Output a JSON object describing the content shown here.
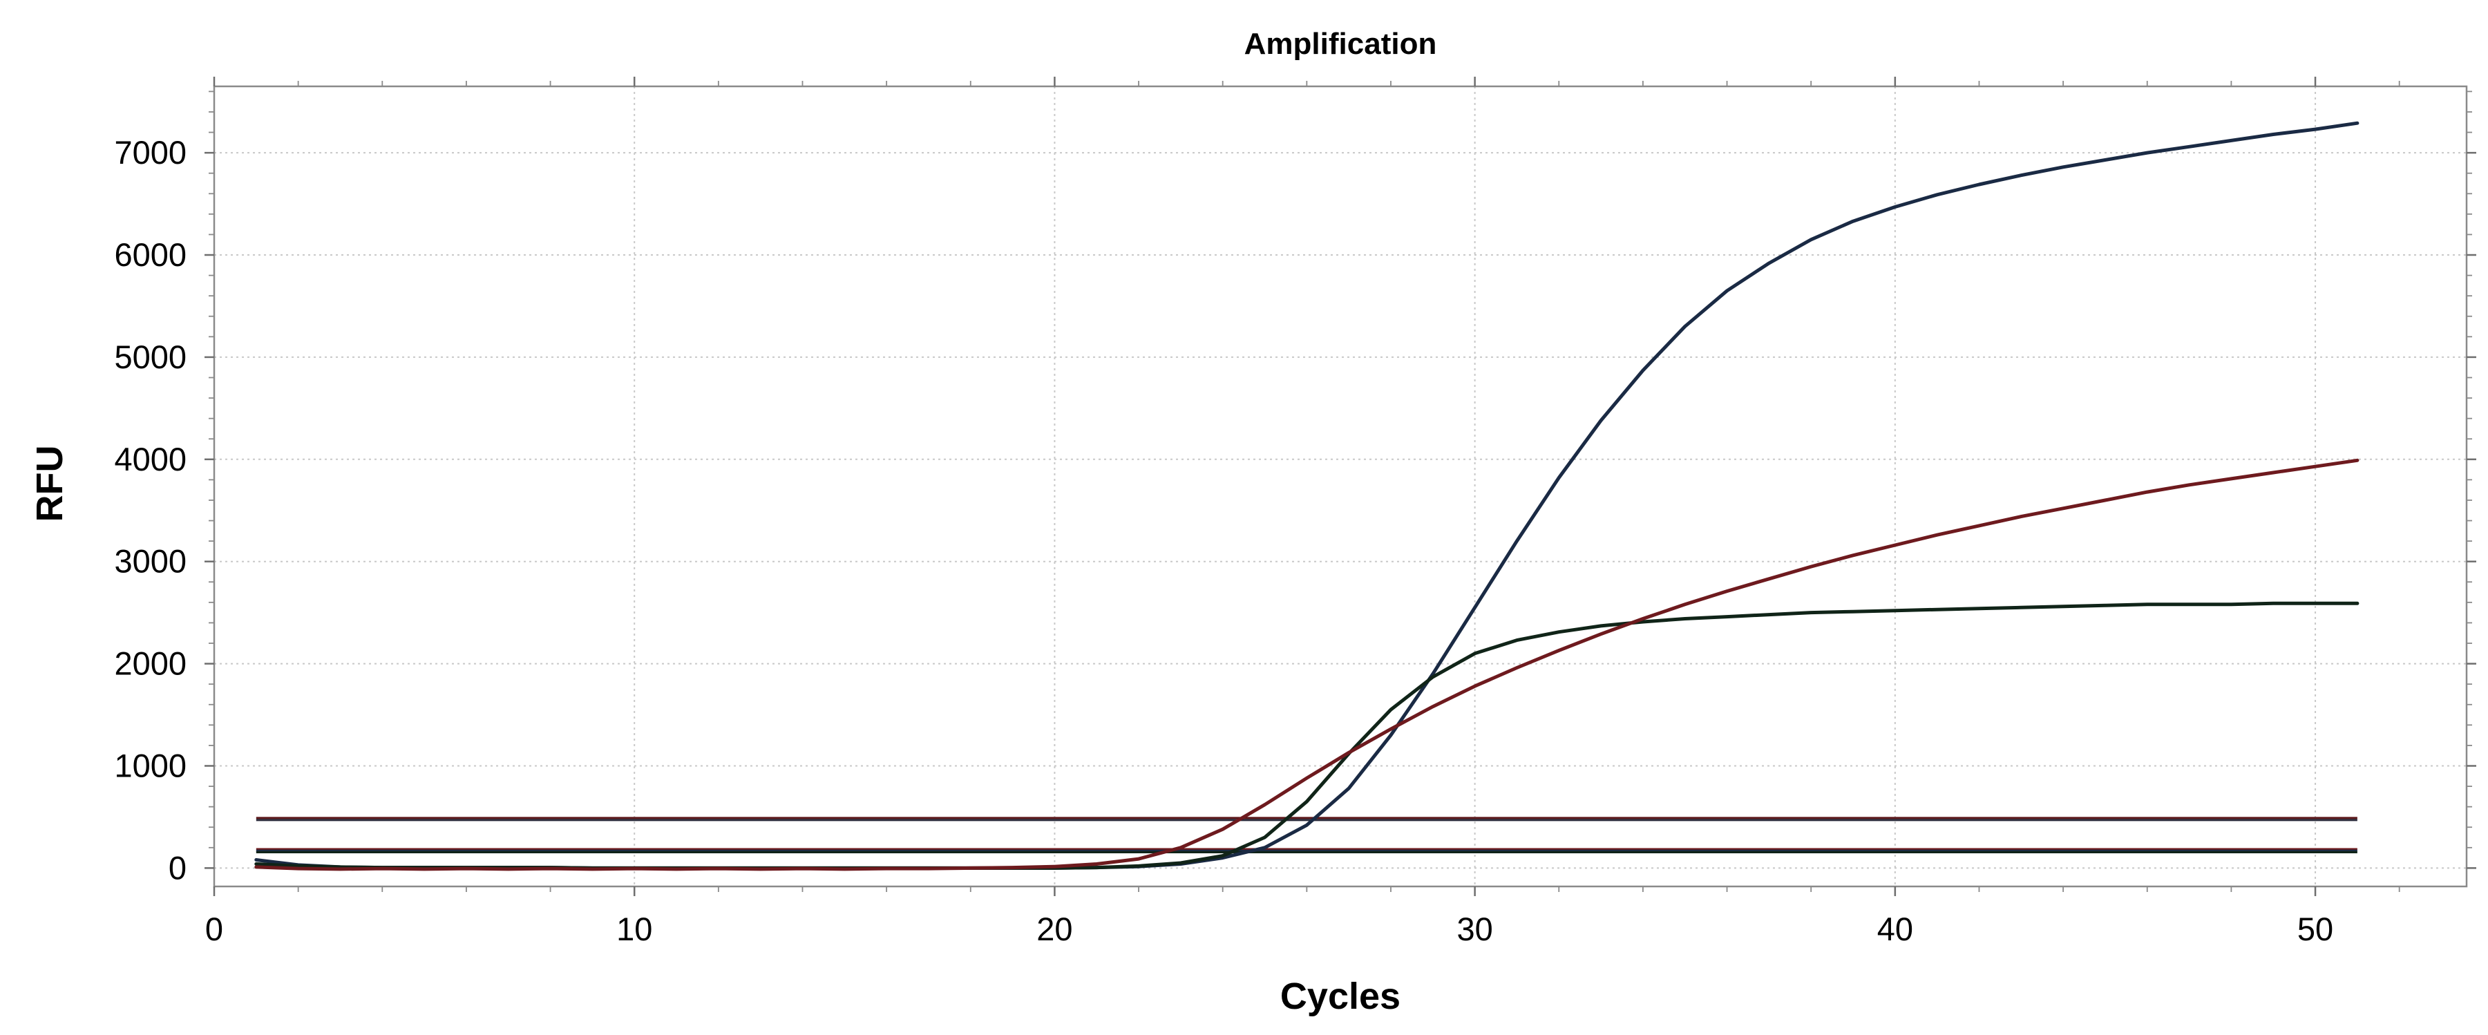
{
  "chart_data": {
    "type": "line",
    "title": "Amplification",
    "xlabel": "Cycles",
    "ylabel": "RFU",
    "xlim": [
      0,
      53.6
    ],
    "ylim": [
      -180,
      7650
    ],
    "xticks": [
      0,
      10,
      20,
      30,
      40,
      50
    ],
    "yticks": [
      0,
      1000,
      2000,
      3000,
      4000,
      5000,
      6000,
      7000
    ],
    "grid": true,
    "legend": "none",
    "x": [
      1,
      2,
      3,
      4,
      5,
      6,
      7,
      8,
      9,
      10,
      11,
      12,
      13,
      14,
      15,
      16,
      17,
      18,
      19,
      20,
      21,
      22,
      23,
      24,
      25,
      26,
      27,
      28,
      29,
      30,
      31,
      32,
      33,
      34,
      35,
      36,
      37,
      38,
      39,
      40,
      41,
      42,
      43,
      44,
      45,
      46,
      47,
      48,
      49,
      50,
      51
    ],
    "series": [
      {
        "color": "#1a2a44",
        "values": [
          80,
          30,
          10,
          5,
          5,
          5,
          5,
          5,
          0,
          0,
          0,
          0,
          0,
          0,
          0,
          0,
          0,
          0,
          0,
          0,
          5,
          15,
          40,
          100,
          200,
          420,
          780,
          1300,
          1900,
          2550,
          3200,
          3820,
          4380,
          4870,
          5300,
          5650,
          5920,
          6150,
          6330,
          6470,
          6590,
          6690,
          6780,
          6860,
          6930,
          7000,
          7060,
          7120,
          7180,
          7230,
          7290
        ]
      },
      {
        "color": "#102418",
        "values": [
          40,
          20,
          10,
          5,
          5,
          5,
          5,
          5,
          0,
          0,
          0,
          0,
          0,
          0,
          0,
          0,
          0,
          0,
          0,
          0,
          5,
          20,
          50,
          120,
          300,
          650,
          1120,
          1550,
          1870,
          2100,
          2230,
          2310,
          2370,
          2410,
          2440,
          2460,
          2480,
          2500,
          2510,
          2520,
          2530,
          2540,
          2550,
          2560,
          2570,
          2580,
          2580,
          2580,
          2590,
          2590,
          2590
        ]
      },
      {
        "color": "#6e1a1e",
        "values": [
          10,
          -5,
          -10,
          -5,
          -10,
          -5,
          -10,
          -5,
          -10,
          -5,
          -10,
          -5,
          -10,
          -5,
          -10,
          -5,
          -5,
          0,
          5,
          15,
          40,
          90,
          200,
          380,
          620,
          880,
          1130,
          1360,
          1580,
          1780,
          1960,
          2130,
          2290,
          2440,
          2580,
          2710,
          2830,
          2950,
          3060,
          3160,
          3260,
          3350,
          3440,
          3520,
          3600,
          3680,
          3750,
          3810,
          3870,
          3930,
          3990
        ]
      }
    ],
    "thresholds": [
      {
        "color": "#5a1518",
        "value": 490
      },
      {
        "color": "#2a2a3a",
        "value": 470
      },
      {
        "color": "#6e1a1e",
        "value": 185
      },
      {
        "color": "#1a2a44",
        "value": 170
      },
      {
        "color": "#102418",
        "value": 155
      }
    ],
    "threshold_x_range": [
      1,
      51
    ]
  }
}
